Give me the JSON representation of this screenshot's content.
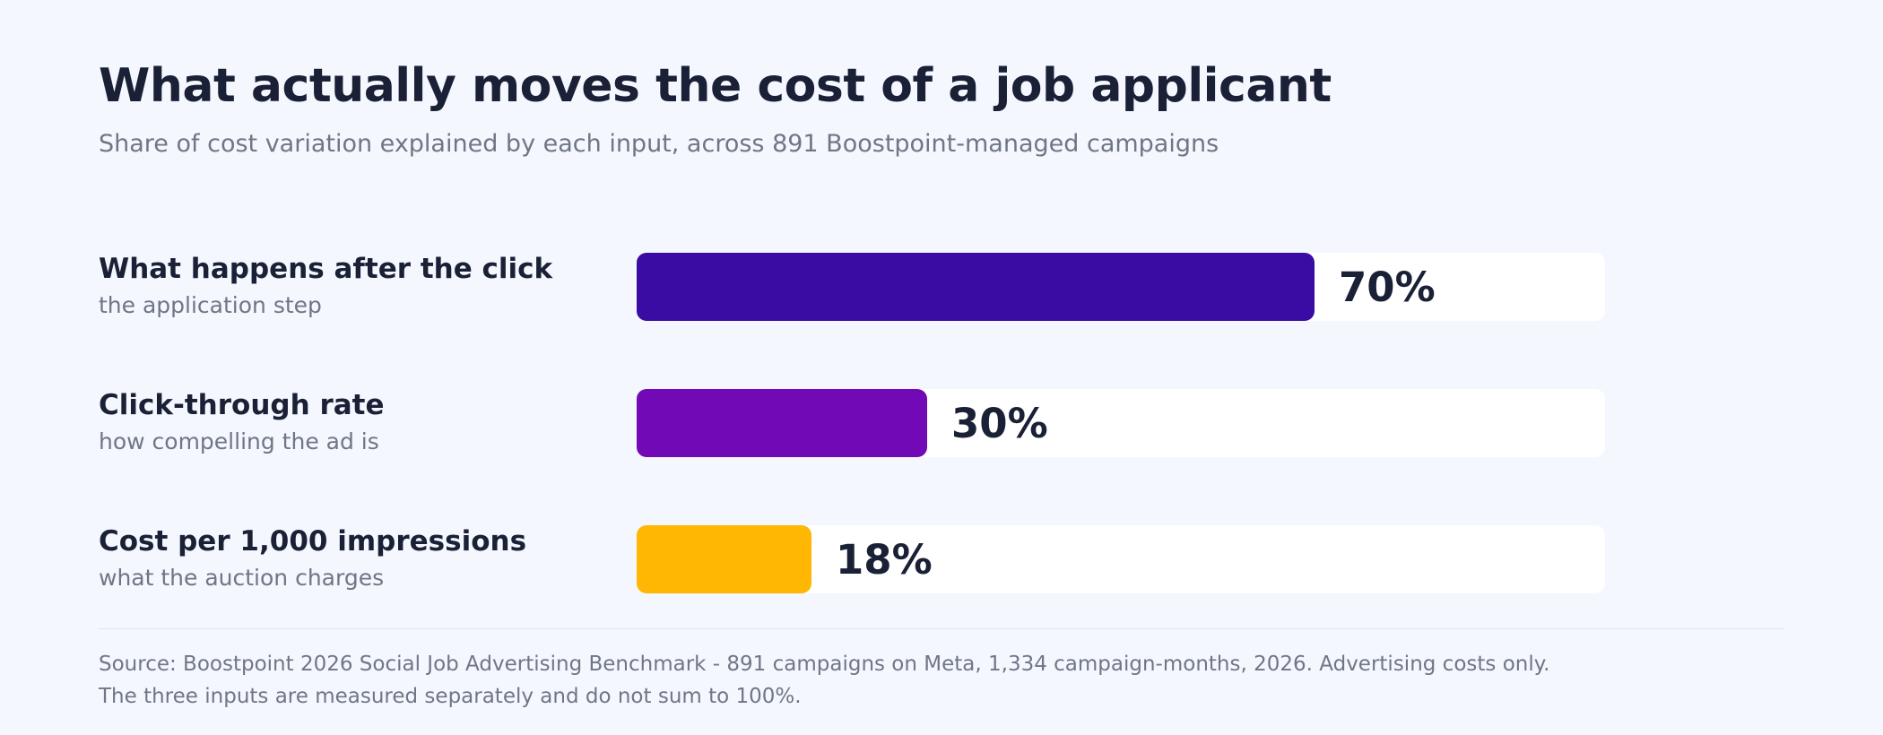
{
  "title": "What actually moves the cost of a job applicant",
  "subtitle": "Share of cost variation explained by each input, across 891 Boostpoint-managed campaigns",
  "chart_data": {
    "type": "bar",
    "orientation": "horizontal",
    "title": "What actually moves the cost of a job applicant",
    "subtitle": "Share of cost variation explained by each input, across 891 Boostpoint-managed campaigns",
    "xlim": [
      0,
      100
    ],
    "unit": "%",
    "grid": false,
    "rows": [
      {
        "label": "What happens after the click",
        "sublabel": "the application step",
        "value": 70,
        "value_label": "70%",
        "color": "#3a0ca3"
      },
      {
        "label": "Click-through rate",
        "sublabel": "how compelling the ad is",
        "value": 30,
        "value_label": "30%",
        "color": "#7209b7"
      },
      {
        "label": "Cost per 1,000 impressions",
        "sublabel": "what the auction charges",
        "value": 18,
        "value_label": "18%",
        "color": "#ffb703"
      }
    ]
  },
  "footer": {
    "source": "Source: Boostpoint 2026 Social Job Advertising Benchmark - 891 campaigns on Meta, 1,334 campaign-months, 2026. Advertising costs only.",
    "note": "The three inputs are measured separately and do not sum to 100%."
  },
  "colors": {
    "background": "#f4f7fe",
    "track": "#ffffff",
    "text": "#1a2035",
    "muted": "#6f7685"
  }
}
